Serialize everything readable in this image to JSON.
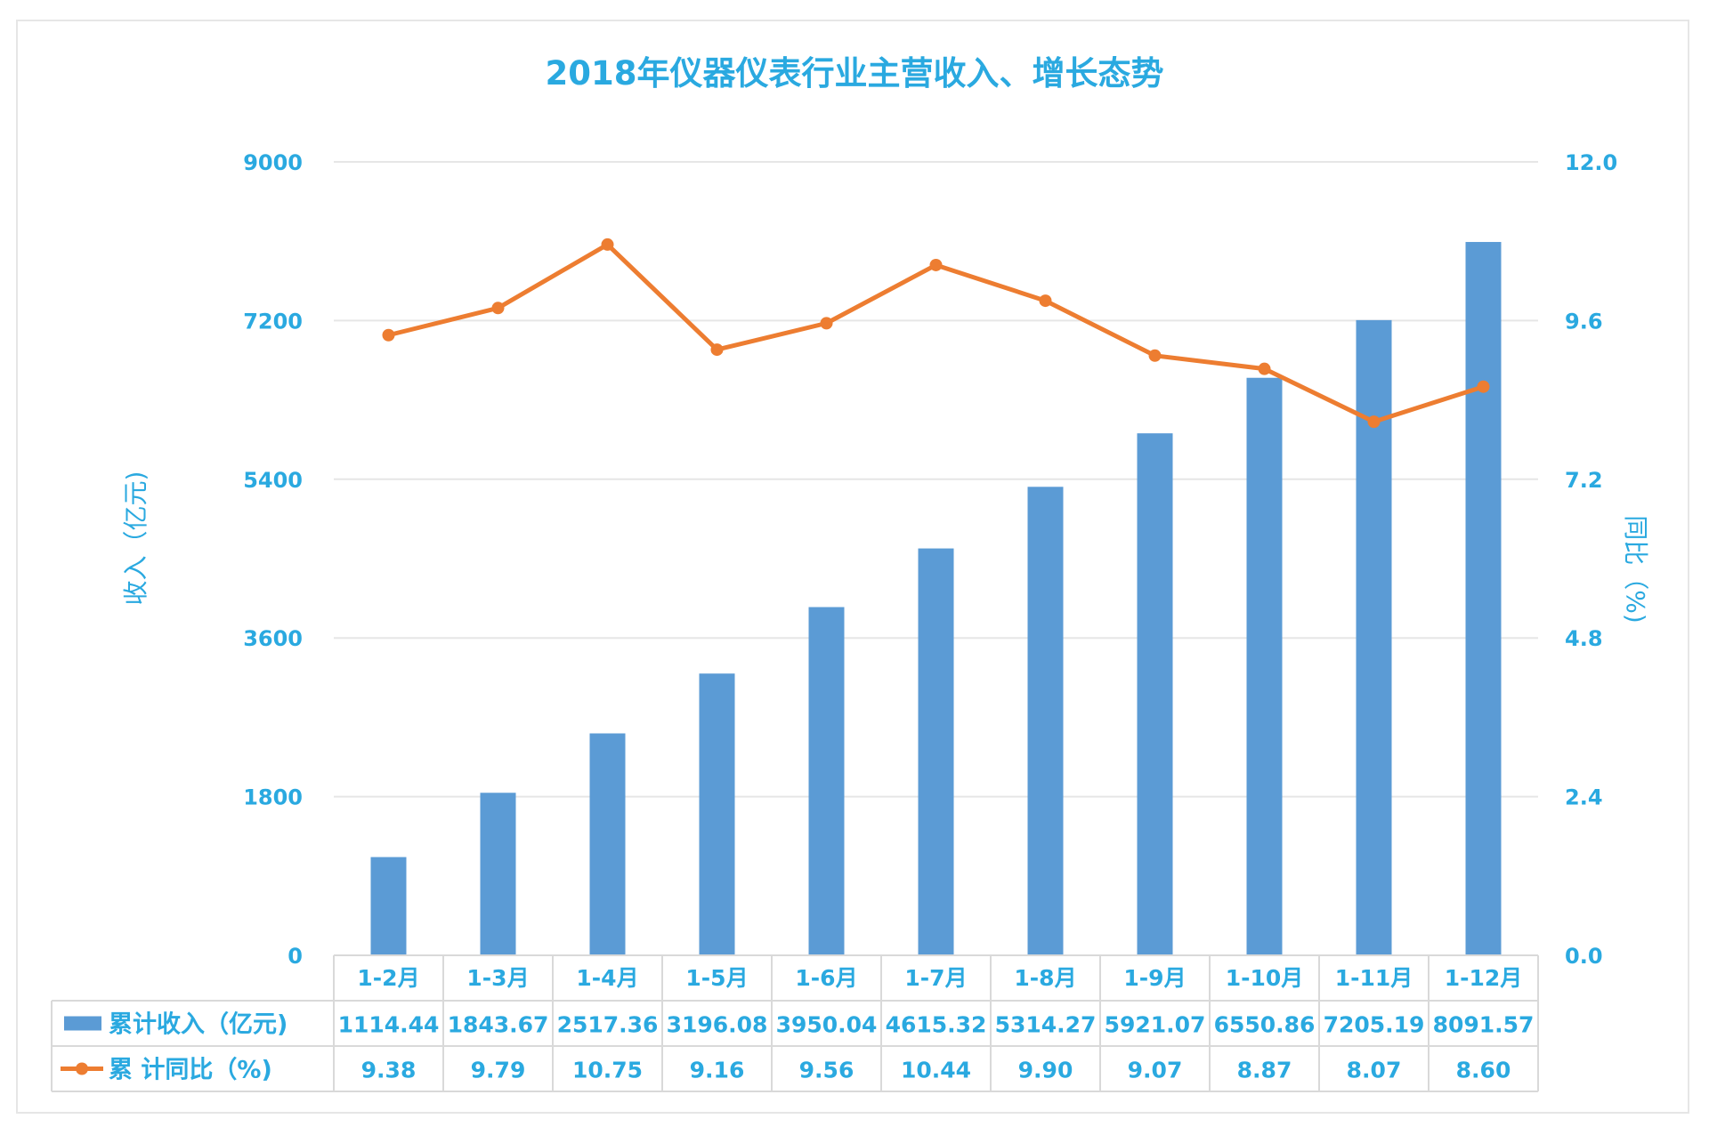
{
  "chart_data": {
    "type": "bar",
    "title": "2018年仪器仪表行业主营收入、增长态势",
    "categories": [
      "1-2月",
      "1-3月",
      "1-4月",
      "1-5月",
      "1-6月",
      "1-7月",
      "1-8月",
      "1-9月",
      "1-10月",
      "1-11月",
      "1-12月"
    ],
    "series": [
      {
        "name": "累计收入（亿元)",
        "type": "bar",
        "axis": "left",
        "color": "#5b9bd5",
        "values": [
          1114.44,
          1843.67,
          2517.36,
          3196.08,
          3950.04,
          4615.32,
          5314.27,
          5921.07,
          6550.86,
          7205.19,
          8091.57
        ],
        "labels": [
          "1114.44",
          "1843.67",
          "2517.36",
          "3196.08",
          "3950.04",
          "4615.32",
          "5314.27",
          "5921.07",
          "6550.86",
          "7205.19",
          "8091.57"
        ]
      },
      {
        "name": "累 计同比（%)",
        "type": "line",
        "axis": "right",
        "color": "#ed7d31",
        "values": [
          9.38,
          9.79,
          10.75,
          9.16,
          9.56,
          10.44,
          9.9,
          9.07,
          8.87,
          8.07,
          8.6
        ],
        "labels": [
          "9.38",
          "9.79",
          "10.75",
          "9.16",
          "9.56",
          "10.44",
          "9.90",
          "9.07",
          "8.87",
          "8.07",
          "8.60"
        ]
      }
    ],
    "ylabel": "收入（亿元)",
    "y2label": "同比（%)",
    "ylim": [
      0,
      9000
    ],
    "y2lim": [
      0,
      12
    ],
    "yticks": [
      "0",
      "1800",
      "3600",
      "5400",
      "7200",
      "9000"
    ],
    "y2ticks": [
      "0.0",
      "2.4",
      "4.8",
      "7.2",
      "9.6",
      "12.0"
    ],
    "grid": true,
    "legend": "data-table",
    "colors": {
      "text": "#2aa9e0",
      "grid": "#e6e6e6",
      "table_border": "#d9d9d9"
    }
  }
}
